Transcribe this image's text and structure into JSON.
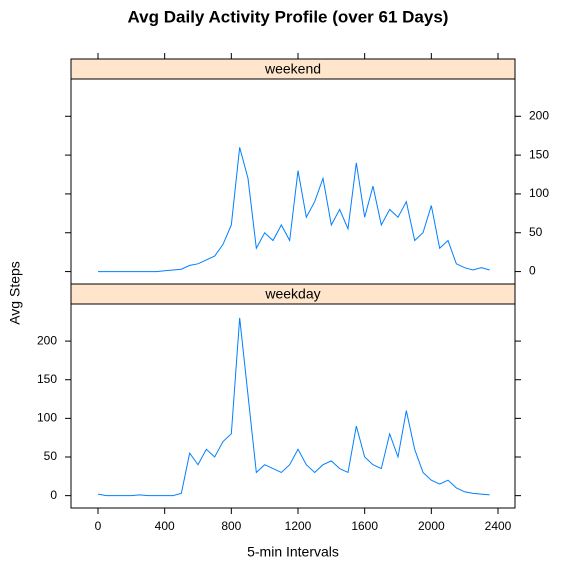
{
  "chart_data": {
    "type": "line",
    "title": "Avg Daily Activity Profile (over 61 Days)",
    "x_label": "5-min Intervals",
    "y_label": "Avg Steps",
    "x": [
      0,
      50,
      100,
      150,
      200,
      250,
      300,
      350,
      400,
      450,
      500,
      550,
      600,
      650,
      700,
      750,
      800,
      850,
      900,
      950,
      1000,
      1050,
      1100,
      1150,
      1200,
      1250,
      1300,
      1350,
      1400,
      1450,
      1500,
      1550,
      1600,
      1650,
      1700,
      1750,
      1800,
      1850,
      1900,
      1950,
      2000,
      2050,
      2100,
      2150,
      2200,
      2250,
      2300,
      2350
    ],
    "series": [
      {
        "name": "weekend",
        "color": "#0080ff",
        "values": [
          0,
          0,
          0,
          0,
          0,
          0,
          0,
          0,
          1,
          2,
          3,
          8,
          10,
          15,
          20,
          35,
          60,
          160,
          120,
          30,
          50,
          40,
          60,
          40,
          130,
          70,
          90,
          120,
          60,
          80,
          55,
          140,
          70,
          110,
          60,
          80,
          70,
          90,
          40,
          50,
          85,
          30,
          40,
          10,
          5,
          2,
          5,
          2
        ]
      },
      {
        "name": "weekday",
        "color": "#0080ff",
        "values": [
          2,
          0,
          0,
          0,
          0,
          1,
          0,
          0,
          0,
          0,
          3,
          55,
          40,
          60,
          50,
          70,
          80,
          230,
          130,
          30,
          40,
          35,
          30,
          40,
          60,
          40,
          30,
          40,
          45,
          35,
          30,
          90,
          50,
          40,
          35,
          80,
          50,
          110,
          60,
          30,
          20,
          15,
          20,
          10,
          5,
          3,
          2,
          1
        ]
      }
    ],
    "xlim": [
      -162,
      2502
    ],
    "xticks": [
      0,
      400,
      800,
      1200,
      1600,
      2000,
      2400
    ],
    "ylim": [
      -16,
      248
    ],
    "yticks": [
      0,
      50,
      100,
      150,
      200
    ],
    "strip_color": "#ffe5cc"
  }
}
